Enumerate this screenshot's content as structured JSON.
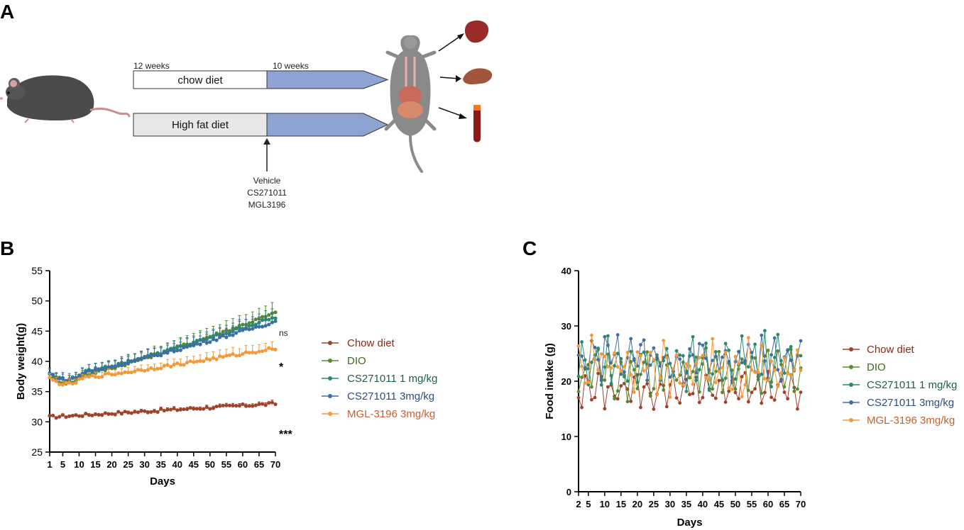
{
  "panel_a": {
    "label": "A",
    "stage1_label": "12 weeks",
    "stage2_label": "10 weeks",
    "diet_chow": "chow diet",
    "diet_hfd": "High fat diet",
    "treatments": [
      "Vehicle",
      "CS271011",
      "MGL3196"
    ],
    "colors": {
      "treatment_arrow": "#8ea2d4",
      "chow_box": "#ffffff",
      "hfd_box": "#e8e8e8"
    }
  },
  "series_styles": [
    {
      "name": "Chow diet",
      "color": "#a0422a",
      "legend_text_color": "#8a2a10"
    },
    {
      "name": "DIO",
      "color": "#5a8a2e",
      "legend_text_color": "#3e6b1a"
    },
    {
      "name": "CS271011 1 mg/kg",
      "color": "#2a8a6e",
      "legend_text_color": "#1e5f4a"
    },
    {
      "name": "CS271011 3mg/kg",
      "color": "#3d6ea5",
      "legend_text_color": "#2e4f7a"
    },
    {
      "name": "MGL-3196 3mg/kg",
      "color": "#f29a3a",
      "legend_text_color": "#c8602a"
    }
  ],
  "chart_data": [
    {
      "panel": "B",
      "type": "line",
      "title": "",
      "xlabel": "Days",
      "ylabel": "Body weight(g)",
      "xlim": [
        1,
        70
      ],
      "ylim": [
        25,
        55
      ],
      "x_ticks": [
        1,
        5,
        10,
        15,
        20,
        25,
        30,
        35,
        40,
        45,
        50,
        55,
        60,
        65,
        70
      ],
      "y_ticks": [
        25,
        30,
        35,
        40,
        45,
        50,
        55
      ],
      "error_bars": true,
      "annotations": [
        {
          "series": "DIO",
          "text": "ns"
        },
        {
          "series": "MGL-3196 3mg/kg",
          "text": "*"
        },
        {
          "series": "Chow diet",
          "text": "***"
        }
      ],
      "series": [
        {
          "name": "Chow diet",
          "start": 30.8,
          "end": 33.0,
          "err": 0.4
        },
        {
          "name": "DIO",
          "start": 37.5,
          "end": 48.0,
          "err": 1.8
        },
        {
          "name": "CS271011 1 mg/kg",
          "start": 38.0,
          "end": 47.3,
          "err": 1.5
        },
        {
          "name": "CS271011 3mg/kg",
          "start": 38.0,
          "end": 46.6,
          "err": 1.7
        },
        {
          "name": "MGL-3196 3mg/kg",
          "start": 37.2,
          "end": 42.2,
          "err": 1.2
        }
      ]
    },
    {
      "panel": "C",
      "type": "line",
      "title": "",
      "xlabel": "Days",
      "ylabel": "Food intake (g)",
      "xlim": [
        2,
        70
      ],
      "ylim": [
        0,
        40
      ],
      "x_ticks": [
        2,
        5,
        10,
        15,
        20,
        25,
        30,
        35,
        40,
        45,
        50,
        55,
        60,
        65,
        70
      ],
      "y_ticks": [
        0,
        10,
        20,
        30,
        40
      ],
      "series": [
        {
          "name": "Chow diet",
          "mean": 18.5,
          "amp": 3.0
        },
        {
          "name": "DIO",
          "mean": 21.5,
          "amp": 4.0
        },
        {
          "name": "CS271011 1 mg/kg",
          "mean": 23.5,
          "amp": 4.5
        },
        {
          "name": "CS271011 3mg/kg",
          "mean": 24.0,
          "amp": 4.0
        },
        {
          "name": "MGL-3196 3mg/kg",
          "mean": 22.5,
          "amp": 4.5
        }
      ]
    }
  ]
}
